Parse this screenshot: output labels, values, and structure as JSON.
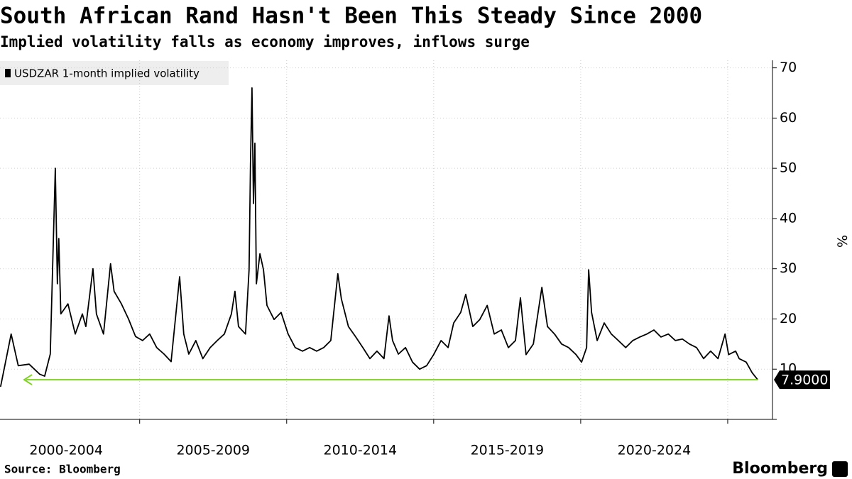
{
  "chart_data": {
    "type": "line",
    "title": "South African Rand Hasn't Been This Steady Since 2000",
    "subtitle": "Implied volatility falls as economy improves, inflows surge",
    "ylabel": "%",
    "source": "Source: Bloomberg",
    "logo": "Bloomberg",
    "xlim": [
      2000.25,
      2026.45
    ],
    "xticks": [
      2005,
      2010,
      2015,
      2020,
      2025
    ],
    "x_periods": [
      {
        "value": 2000,
        "label": "2000-2004"
      },
      {
        "value": 2005,
        "label": "2005-2009"
      },
      {
        "value": 2010,
        "label": "2010-2014"
      },
      {
        "value": 2015,
        "label": "2015-2019"
      },
      {
        "value": 2020,
        "label": "2020-2024"
      }
    ],
    "ylim": [
      0,
      71.5
    ],
    "yticks": [
      10,
      20,
      30,
      40,
      50,
      60,
      70
    ],
    "grid": true,
    "legend": "top-left",
    "arrow_color": "#7ed321",
    "last_value_label": "7.9000",
    "x": [
      2000.27,
      2000.39,
      2000.63,
      2000.87,
      2001.24,
      2001.6,
      2001.77,
      2001.96,
      2002.13,
      2002.2,
      2002.25,
      2002.32,
      2002.56,
      2002.81,
      2003.05,
      2003.17,
      2003.41,
      2003.53,
      2003.77,
      2004.01,
      2004.13,
      2004.38,
      2004.62,
      2004.86,
      2005.1,
      2005.34,
      2005.58,
      2005.83,
      2006.07,
      2006.36,
      2006.5,
      2006.67,
      2006.91,
      2007.15,
      2007.4,
      2007.64,
      2007.88,
      2008.12,
      2008.24,
      2008.36,
      2008.6,
      2008.72,
      2008.77,
      2008.82,
      2008.87,
      2008.92,
      2008.97,
      2009.09,
      2009.21,
      2009.33,
      2009.57,
      2009.81,
      2010.05,
      2010.29,
      2010.54,
      2010.78,
      2011.02,
      2011.26,
      2011.5,
      2011.74,
      2011.86,
      2012.1,
      2012.35,
      2012.59,
      2012.83,
      2013.07,
      2013.31,
      2013.48,
      2013.6,
      2013.8,
      2014.04,
      2014.28,
      2014.52,
      2014.76,
      2015.0,
      2015.25,
      2015.49,
      2015.68,
      2015.92,
      2016.09,
      2016.33,
      2016.57,
      2016.82,
      2017.06,
      2017.3,
      2017.54,
      2017.78,
      2017.95,
      2018.14,
      2018.39,
      2018.68,
      2018.87,
      2019.11,
      2019.35,
      2019.59,
      2019.84,
      2020.03,
      2020.2,
      2020.27,
      2020.37,
      2020.56,
      2020.8,
      2021.04,
      2021.28,
      2021.53,
      2021.77,
      2022.01,
      2022.25,
      2022.49,
      2022.73,
      2022.98,
      2023.22,
      2023.46,
      2023.7,
      2023.94,
      2024.18,
      2024.42,
      2024.67,
      2024.91,
      2025.03,
      2025.27,
      2025.39,
      2025.63,
      2025.83,
      2026.02
    ],
    "series": [
      {
        "name": "USDZAR 1-month implied volatility",
        "color": "#000000",
        "values": [
          6.5,
          10,
          17,
          10.7,
          11,
          9,
          8.6,
          13,
          50,
          27,
          36,
          21,
          23,
          17,
          21,
          18.5,
          30,
          21,
          17,
          31,
          25.5,
          23,
          20,
          16.5,
          15.7,
          17,
          14.3,
          13,
          11.5,
          28.4,
          17,
          13,
          15.7,
          12.1,
          14.3,
          15.7,
          17,
          21,
          25.5,
          18.5,
          17,
          29.8,
          51,
          66,
          43,
          55,
          27,
          33,
          29.8,
          22.7,
          19.9,
          21.3,
          17,
          14.3,
          13.6,
          14.3,
          13.6,
          14.3,
          15.7,
          29,
          24,
          18.5,
          16.4,
          14.3,
          12.1,
          13.6,
          12.1,
          20.6,
          15.7,
          13,
          14.3,
          11.4,
          10,
          10.7,
          12.9,
          15.7,
          14.3,
          19.2,
          21.3,
          24.9,
          18.5,
          19.9,
          22.7,
          17,
          17.8,
          14.3,
          15.7,
          24.2,
          12.9,
          15,
          26.3,
          18.5,
          17,
          15,
          14.3,
          12.9,
          11.4,
          14.3,
          29.8,
          21.3,
          15.7,
          19.2,
          17,
          15.7,
          14.3,
          15.7,
          16.4,
          17,
          17.8,
          16.4,
          17,
          15.7,
          16,
          15,
          14.3,
          12.1,
          13.6,
          12.1,
          17,
          12.9,
          13.6,
          12.1,
          11.4,
          9.3,
          7.9
        ]
      }
    ]
  }
}
